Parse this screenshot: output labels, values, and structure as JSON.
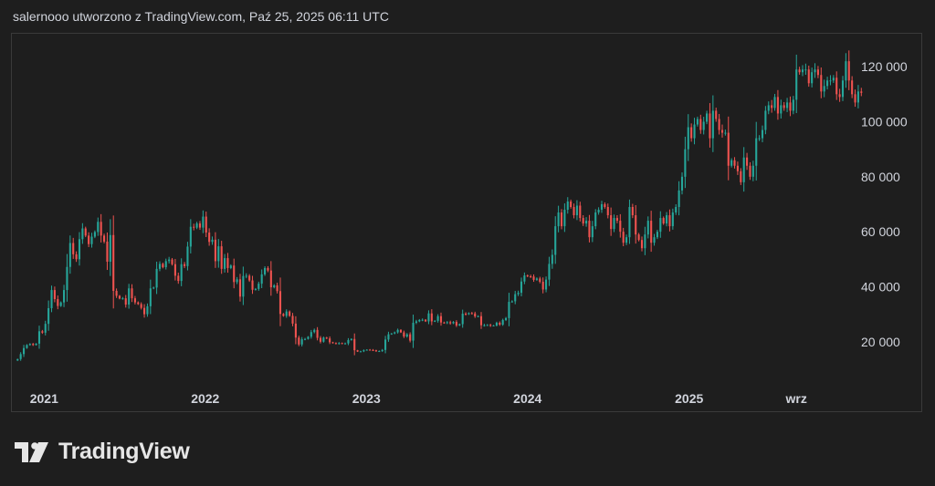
{
  "header": {
    "caption": "salernooo utworzono z TradingView.com, Paź 25, 2025 06:11 UTC"
  },
  "brand": {
    "name": "TradingView"
  },
  "colors": {
    "up": "#26a69a",
    "down": "#ef5350",
    "background": "#1e1e1e",
    "text": "#d1d4dc"
  },
  "chart_data": {
    "type": "candlestick",
    "title": "",
    "xlabel": "",
    "ylabel": "",
    "y_ticks": [
      "20 000",
      "40 000",
      "60 000",
      "80 000",
      "100 000",
      "120 000"
    ],
    "y_tick_values": [
      20000,
      40000,
      60000,
      80000,
      100000,
      120000
    ],
    "x_ticks": [
      "2021",
      "2022",
      "2023",
      "2024",
      "2025",
      "wrz"
    ],
    "x_tick_dates": [
      "2021-01-01",
      "2022-01-01",
      "2023-01-01",
      "2024-01-01",
      "2025-01-01",
      "2025-09-01"
    ],
    "ylim": [
      6000,
      132000
    ],
    "xlim": [
      "2020-10-20",
      "2025-12-15"
    ],
    "grid": false,
    "series": [
      {
        "interval": "weekly",
        "start": "2020-11-02",
        "close": [
          13700,
          15500,
          17700,
          18800,
          19200,
          18800,
          19300,
          23800,
          23300,
          26500,
          32200,
          38800,
          35500,
          33000,
          34300,
          38800,
          47200,
          55900,
          51800,
          50000,
          57300,
          61200,
          58600,
          55500,
          58200,
          59900,
          63600,
          58600,
          56400,
          49100,
          58800,
          38500,
          36700,
          35700,
          35800,
          33500,
          39400,
          35800,
          34300,
          33700,
          32300,
          30000,
          32900,
          39400,
          39700,
          46500,
          48300,
          47100,
          49300,
          49900,
          48200,
          44000,
          42100,
          48200,
          47500,
          54600,
          61800,
          61500,
          63000,
          61500,
          65500,
          59700,
          56300,
          57100,
          49300,
          54700,
          46500,
          50400,
          46800,
          47700,
          41700,
          42700,
          36400,
          43900,
          44000,
          42300,
          38900,
          39200,
          41100,
          44500,
          46800,
          45900,
          39800,
          40500,
          38400,
          30100,
          29400,
          31000,
          29400,
          26600,
          21500,
          19000,
          20900,
          21000,
          21800,
          23500,
          24300,
          21400,
          20000,
          21500,
          21200,
          19800,
          19500,
          19300,
          19500,
          19300,
          19400,
          20600,
          21000,
          16900,
          16400,
          16500,
          16900,
          17100,
          17000,
          16900,
          16500,
          16600,
          17000,
          20800,
          22700,
          23000,
          23400,
          24300,
          23400,
          21900,
          22700,
          20400,
          26900,
          27400,
          27900,
          28000,
          27400,
          30300,
          27400,
          27600,
          29300,
          27000,
          26800,
          27100,
          26700,
          27200,
          25900,
          26400,
          30200,
          30000,
          30400,
          30300,
          29200,
          29300,
          26000,
          26000,
          26100,
          25800,
          25900,
          26900,
          26200,
          27900,
          28600,
          34500,
          34700,
          37300,
          37800,
          41900,
          44100,
          43800,
          43700,
          42500,
          43000,
          41800,
          39000,
          42600,
          48300,
          51600,
          62000,
          67000,
          62000,
          68000,
          71000,
          69000,
          66000,
          69500,
          65000,
          63000,
          64000,
          58000,
          62000,
          67000,
          68000,
          70000,
          69000,
          66000,
          61000,
          65000,
          64000,
          60000,
          56000,
          58000,
          69000,
          66000,
          59000,
          57000,
          54000,
          59000,
          64000,
          56000,
          58000,
          60000,
          65000,
          63000,
          66000,
          62000,
          67000,
          69000,
          75000,
          80000,
          90000,
          98000,
          94000,
          99000,
          101000,
          97000,
          100000,
          103000,
          94000,
          104000,
          101000,
          97000,
          96000,
          96000,
          84000,
          86000,
          84000,
          82000,
          78000,
          87000,
          84000,
          80000,
          84000,
          94000,
          94000,
          97000,
          104000,
          106000,
          105000,
          109000,
          103000,
          106000,
          105000,
          107000,
          104000,
          108000,
          119000,
          118000,
          119000,
          119000,
          114000,
          118000,
          119000,
          117000,
          111000,
          113000,
          115000,
          115000,
          116000,
          110000,
          109000,
          115000,
          122000,
          115000,
          110000,
          107000,
          111000,
          110500
        ]
      }
    ]
  }
}
